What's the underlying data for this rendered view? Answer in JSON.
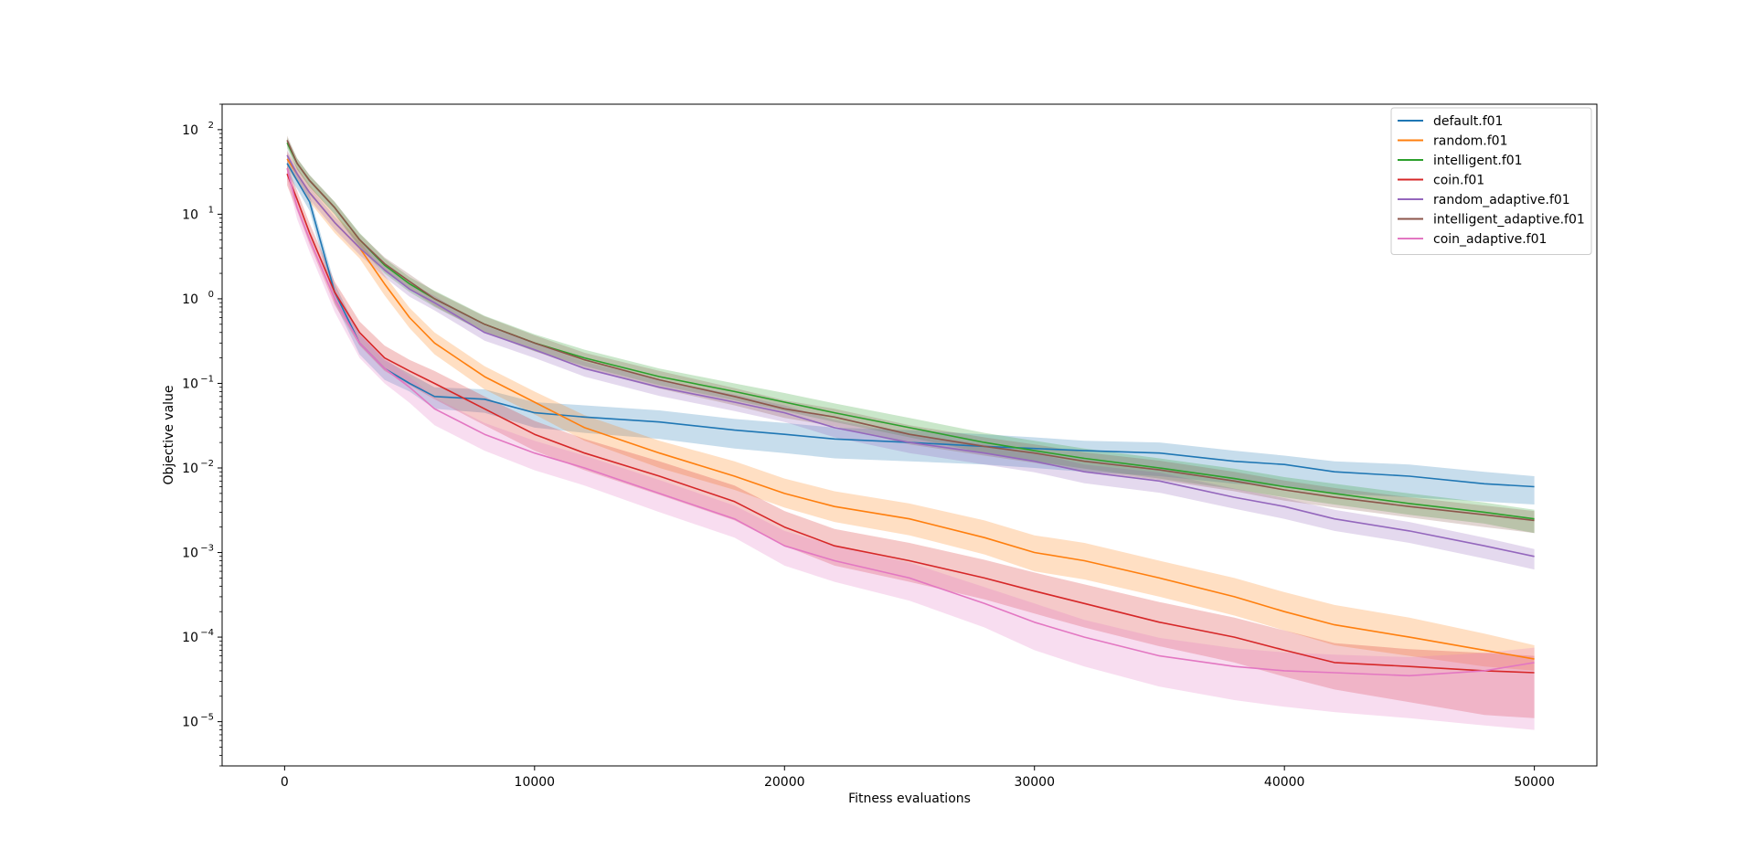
{
  "chart_data": {
    "type": "line",
    "title": "",
    "xlabel": "Fitness evaluations",
    "ylabel": "Objective value",
    "yscale": "log",
    "xlim": [
      -2500,
      52500
    ],
    "ylim": [
      3e-06,
      200
    ],
    "grid": false,
    "legend_position": "top-right",
    "x_ticks": [
      0,
      10000,
      20000,
      30000,
      40000,
      50000
    ],
    "x_tick_labels": [
      "0",
      "10000",
      "20000",
      "30000",
      "40000",
      "50000"
    ],
    "y_ticks": [
      1e-05,
      0.0001,
      0.001,
      0.01,
      0.1,
      1,
      10,
      100
    ],
    "y_tick_labels": [
      {
        "base": "10",
        "exp": "−5"
      },
      {
        "base": "10",
        "exp": "−4"
      },
      {
        "base": "10",
        "exp": "−3"
      },
      {
        "base": "10",
        "exp": "−2"
      },
      {
        "base": "10",
        "exp": "−1"
      },
      {
        "base": "10",
        "exp": "0"
      },
      {
        "base": "10",
        "exp": "1"
      },
      {
        "base": "10",
        "exp": "2"
      }
    ],
    "x": [
      100,
      500,
      1000,
      2000,
      3000,
      4000,
      5000,
      6000,
      8000,
      10000,
      12000,
      15000,
      18000,
      20000,
      22000,
      25000,
      28000,
      30000,
      32000,
      35000,
      38000,
      40000,
      42000,
      45000,
      48000,
      50000
    ],
    "series": [
      {
        "name": "default.f01",
        "color": "#1f77b4",
        "values": [
          40,
          25,
          14,
          1.2,
          0.3,
          0.15,
          0.1,
          0.07,
          0.065,
          0.045,
          0.04,
          0.035,
          0.028,
          0.025,
          0.022,
          0.02,
          0.018,
          0.017,
          0.016,
          0.015,
          0.012,
          0.011,
          0.009,
          0.008,
          0.0065,
          0.006
        ],
        "lower": [
          30,
          20,
          11,
          0.9,
          0.22,
          0.11,
          0.08,
          0.05,
          0.045,
          0.03,
          0.026,
          0.022,
          0.017,
          0.015,
          0.013,
          0.012,
          0.011,
          0.01,
          0.009,
          0.008,
          0.0065,
          0.006,
          0.005,
          0.0045,
          0.004,
          0.0037
        ],
        "upper": [
          50,
          32,
          17,
          1.5,
          0.38,
          0.19,
          0.13,
          0.09,
          0.085,
          0.06,
          0.055,
          0.048,
          0.038,
          0.034,
          0.03,
          0.028,
          0.025,
          0.023,
          0.021,
          0.02,
          0.016,
          0.014,
          0.012,
          0.011,
          0.009,
          0.008
        ]
      },
      {
        "name": "random.f01",
        "color": "#ff7f0e",
        "values": [
          45,
          30,
          18,
          8,
          4,
          1.5,
          0.6,
          0.3,
          0.12,
          0.06,
          0.03,
          0.015,
          0.008,
          0.005,
          0.0035,
          0.0025,
          0.0015,
          0.001,
          0.0008,
          0.0005,
          0.0003,
          0.0002,
          0.00014,
          0.0001,
          7e-05,
          5.5e-05
        ],
        "lower": [
          35,
          24,
          14,
          6,
          3,
          1.1,
          0.45,
          0.22,
          0.085,
          0.043,
          0.021,
          0.01,
          0.0055,
          0.0034,
          0.0023,
          0.0016,
          0.00095,
          0.0006,
          0.00048,
          0.0003,
          0.00018,
          0.00012,
          8e-05,
          6e-05,
          4.5e-05,
          4e-05
        ],
        "upper": [
          55,
          36,
          22,
          10,
          5,
          1.9,
          0.78,
          0.4,
          0.16,
          0.08,
          0.042,
          0.021,
          0.012,
          0.0075,
          0.0053,
          0.0038,
          0.0024,
          0.0016,
          0.0013,
          0.0008,
          0.0005,
          0.00034,
          0.00024,
          0.00017,
          0.00011,
          8e-05
        ]
      },
      {
        "name": "intelligent.f01",
        "color": "#2ca02c",
        "values": [
          70,
          40,
          25,
          12,
          5,
          2.5,
          1.5,
          1.0,
          0.5,
          0.3,
          0.2,
          0.12,
          0.08,
          0.06,
          0.045,
          0.03,
          0.02,
          0.016,
          0.013,
          0.01,
          0.0075,
          0.006,
          0.005,
          0.0038,
          0.003,
          0.0025
        ],
        "lower": [
          60,
          34,
          21,
          10,
          4,
          2,
          1.2,
          0.8,
          0.4,
          0.24,
          0.16,
          0.095,
          0.063,
          0.047,
          0.035,
          0.023,
          0.015,
          0.012,
          0.0098,
          0.0075,
          0.0056,
          0.0045,
          0.0037,
          0.0028,
          0.0022,
          0.0017
        ],
        "upper": [
          80,
          46,
          29,
          14,
          6,
          3,
          1.8,
          1.25,
          0.63,
          0.38,
          0.25,
          0.15,
          0.1,
          0.077,
          0.058,
          0.039,
          0.026,
          0.021,
          0.017,
          0.013,
          0.0098,
          0.0078,
          0.0065,
          0.005,
          0.0039,
          0.0032
        ]
      },
      {
        "name": "coin.f01",
        "color": "#d62728",
        "values": [
          30,
          15,
          6,
          1.2,
          0.4,
          0.2,
          0.14,
          0.1,
          0.05,
          0.025,
          0.015,
          0.008,
          0.004,
          0.002,
          0.0012,
          0.0008,
          0.0005,
          0.00035,
          0.00025,
          0.00015,
          0.0001,
          7e-05,
          5e-05,
          4.5e-05,
          4e-05,
          3.8e-05
        ],
        "lower": [
          22,
          11,
          4.4,
          0.85,
          0.28,
          0.14,
          0.095,
          0.065,
          0.032,
          0.016,
          0.0094,
          0.0048,
          0.0024,
          0.0012,
          0.0007,
          0.00045,
          0.00028,
          0.00019,
          0.00013,
          7.8e-05,
          5e-05,
          3.4e-05,
          2.4e-05,
          1.7e-05,
          1.2e-05,
          1.1e-05
        ],
        "upper": [
          38,
          19,
          7.8,
          1.6,
          0.54,
          0.28,
          0.19,
          0.14,
          0.07,
          0.036,
          0.022,
          0.012,
          0.0062,
          0.0031,
          0.0019,
          0.0013,
          0.00082,
          0.00058,
          0.00042,
          0.00026,
          0.00017,
          0.00012,
          8.5e-05,
          7.2e-05,
          6.5e-05,
          6e-05
        ]
      },
      {
        "name": "random_adaptive.f01",
        "color": "#9467bd",
        "values": [
          50,
          30,
          18,
          8,
          4,
          2.2,
          1.3,
          0.9,
          0.4,
          0.25,
          0.15,
          0.09,
          0.06,
          0.045,
          0.03,
          0.02,
          0.015,
          0.012,
          0.009,
          0.007,
          0.0045,
          0.0035,
          0.0025,
          0.0018,
          0.0012,
          0.0009
        ],
        "lower": [
          42,
          25,
          15,
          6.6,
          3.3,
          1.8,
          1.06,
          0.73,
          0.32,
          0.2,
          0.12,
          0.071,
          0.047,
          0.035,
          0.023,
          0.015,
          0.011,
          0.0089,
          0.0066,
          0.0051,
          0.0033,
          0.0025,
          0.0018,
          0.0013,
          0.00085,
          0.00063
        ],
        "upper": [
          58,
          35,
          21,
          9.4,
          4.7,
          2.6,
          1.55,
          1.08,
          0.48,
          0.3,
          0.18,
          0.11,
          0.074,
          0.055,
          0.037,
          0.025,
          0.019,
          0.015,
          0.011,
          0.0088,
          0.0057,
          0.0044,
          0.0032,
          0.0023,
          0.0015,
          0.0011
        ]
      },
      {
        "name": "intelligent_adaptive.f01",
        "color": "#8c564b",
        "values": [
          75,
          40,
          25,
          12,
          5,
          2.6,
          1.6,
          1.0,
          0.5,
          0.3,
          0.19,
          0.11,
          0.07,
          0.05,
          0.04,
          0.025,
          0.018,
          0.015,
          0.012,
          0.0095,
          0.007,
          0.0055,
          0.0045,
          0.0035,
          0.0028,
          0.0024
        ],
        "lower": [
          65,
          34,
          21,
          10,
          4.2,
          2.1,
          1.3,
          0.82,
          0.4,
          0.24,
          0.15,
          0.087,
          0.055,
          0.039,
          0.031,
          0.019,
          0.014,
          0.0115,
          0.0092,
          0.0072,
          0.0053,
          0.0041,
          0.0034,
          0.0026,
          0.002,
          0.0017
        ],
        "upper": [
          85,
          46,
          29,
          14,
          5.9,
          3.1,
          1.95,
          1.22,
          0.62,
          0.37,
          0.23,
          0.14,
          0.088,
          0.063,
          0.05,
          0.032,
          0.023,
          0.019,
          0.0153,
          0.0122,
          0.009,
          0.0071,
          0.0058,
          0.0045,
          0.0036,
          0.0031
        ]
      },
      {
        "name": "coin_adaptive.f01",
        "color": "#e377c2",
        "values": [
          35,
          12,
          5,
          1.0,
          0.3,
          0.15,
          0.09,
          0.05,
          0.025,
          0.015,
          0.01,
          0.005,
          0.0025,
          0.0012,
          0.0008,
          0.0005,
          0.00025,
          0.00015,
          0.0001,
          6e-05,
          4.5e-05,
          4e-05,
          3.8e-05,
          3.5e-05,
          4e-05,
          5e-05
        ],
        "lower": [
          26,
          8.8,
          3.6,
          0.7,
          0.2,
          0.1,
          0.059,
          0.032,
          0.016,
          0.0094,
          0.0062,
          0.003,
          0.0015,
          0.0007,
          0.00045,
          0.00027,
          0.00013,
          7e-05,
          4.5e-05,
          2.6e-05,
          1.8e-05,
          1.5e-05,
          1.3e-05,
          1.1e-05,
          9e-06,
          8e-06
        ],
        "upper": [
          44,
          15,
          6.4,
          1.3,
          0.4,
          0.2,
          0.12,
          0.068,
          0.034,
          0.021,
          0.014,
          0.0072,
          0.0036,
          0.0018,
          0.0012,
          0.00076,
          0.00039,
          0.00025,
          0.00016,
          9.8e-05,
          7.4e-05,
          6.6e-05,
          6.2e-05,
          5.8e-05,
          6.5e-05,
          7.5e-05
        ]
      }
    ]
  }
}
